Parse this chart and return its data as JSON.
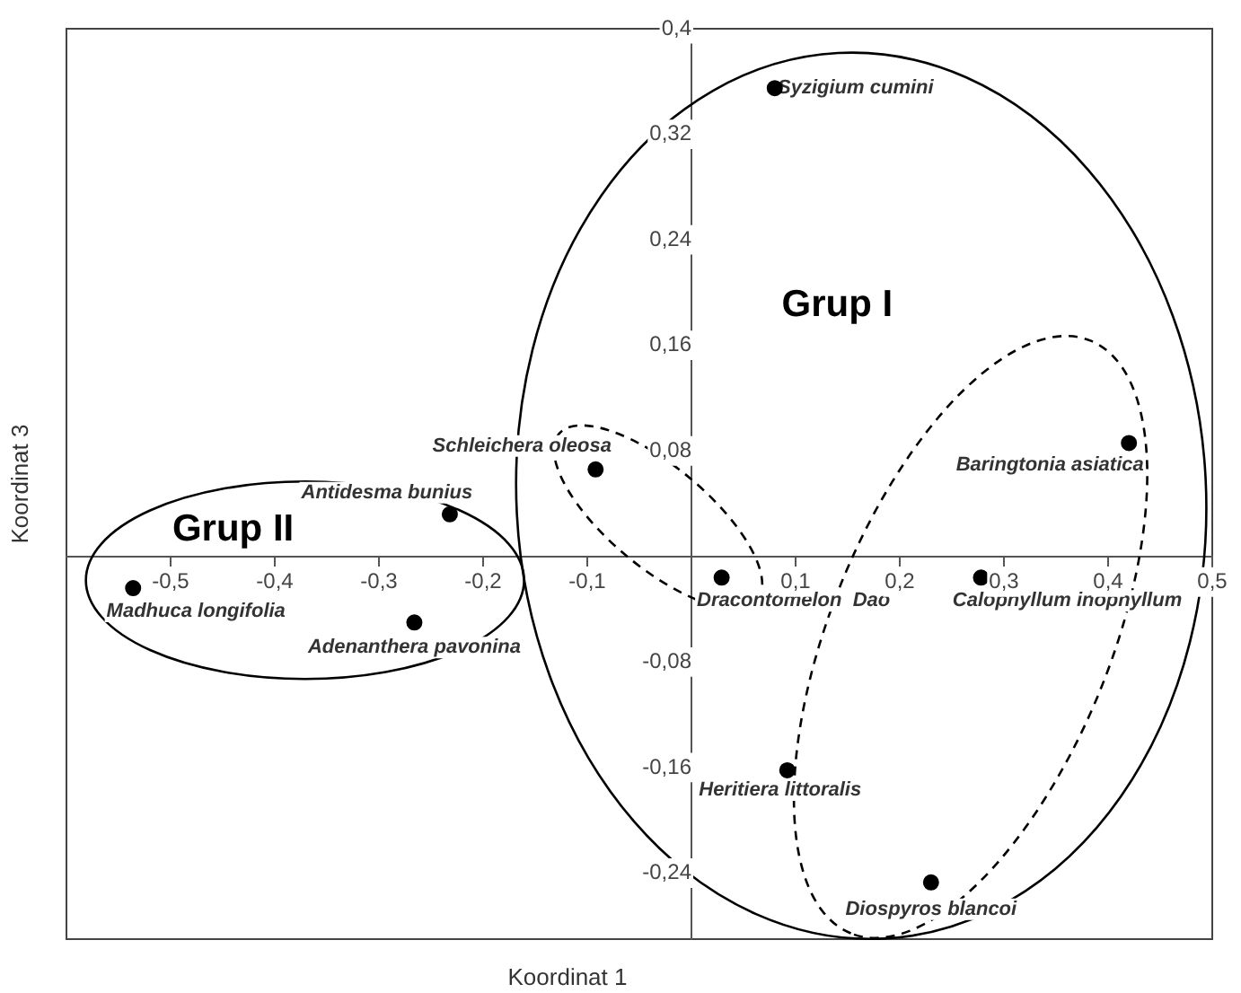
{
  "chart_data": {
    "type": "scatter",
    "xlabel": "Koordinat 1",
    "ylabel": "Koordinat 3",
    "x": [
      0.08,
      -0.092,
      -0.232,
      -0.536,
      -0.266,
      0.029,
      0.278,
      0.42,
      0.092,
      0.23
    ],
    "values": [
      0.355,
      0.066,
      0.032,
      -0.024,
      -0.05,
      -0.016,
      -0.016,
      0.086,
      -0.162,
      -0.247
    ],
    "color": "#000000",
    "marker": "circle",
    "grid": false,
    "legend": false,
    "xlim": [
      -0.6,
      0.5
    ],
    "ylim": [
      -0.29,
      0.4
    ],
    "xticks": [
      {
        "value": -0.5,
        "label": "-0,5"
      },
      {
        "value": -0.4,
        "label": "-0,4"
      },
      {
        "value": -0.3,
        "label": "-0,3"
      },
      {
        "value": -0.2,
        "label": "-0,2"
      },
      {
        "value": -0.1,
        "label": "-0,1"
      },
      {
        "value": 0.1,
        "label": "0,1"
      },
      {
        "value": 0.2,
        "label": "0,2"
      },
      {
        "value": 0.3,
        "label": "0,3"
      },
      {
        "value": 0.4,
        "label": "0,4"
      },
      {
        "value": 0.5,
        "label": "0,5"
      }
    ],
    "yticks": [
      {
        "value": -0.24,
        "label": "-0,24"
      },
      {
        "value": -0.16,
        "label": "-0,16"
      },
      {
        "value": -0.08,
        "label": "-0,08"
      },
      {
        "value": 0.08,
        "label": "0,08"
      },
      {
        "value": 0.16,
        "label": "0,16"
      },
      {
        "value": 0.24,
        "label": "0,24"
      },
      {
        "value": 0.32,
        "label": "0,32"
      },
      {
        "value": 0.4,
        "label": "0,4"
      }
    ],
    "annotations": [
      {
        "text": "Syzigium cumini",
        "x": 0.08,
        "y": 0.355
      },
      {
        "text": "Schleichera oleosa",
        "x": -0.092,
        "y": 0.066
      },
      {
        "text": "Antidesma bunius",
        "x": -0.232,
        "y": 0.032
      },
      {
        "text": "Madhuca longifolia",
        "x": -0.536,
        "y": -0.024
      },
      {
        "text": "Adenanthera pavonina",
        "x": -0.266,
        "y": -0.05
      },
      {
        "text": "Dracontomelon  Dao",
        "x": 0.029,
        "y": -0.016
      },
      {
        "text": "Calophyllum inophyllum",
        "x": 0.278,
        "y": -0.016
      },
      {
        "text": "Baringtonia asiatica",
        "x": 0.42,
        "y": 0.086
      },
      {
        "text": "Heritiera littoralis",
        "x": 0.092,
        "y": -0.162
      },
      {
        "text": "Diospyros blancoi",
        "x": 0.23,
        "y": -0.247
      },
      "Grup I",
      "Grup II"
    ]
  }
}
